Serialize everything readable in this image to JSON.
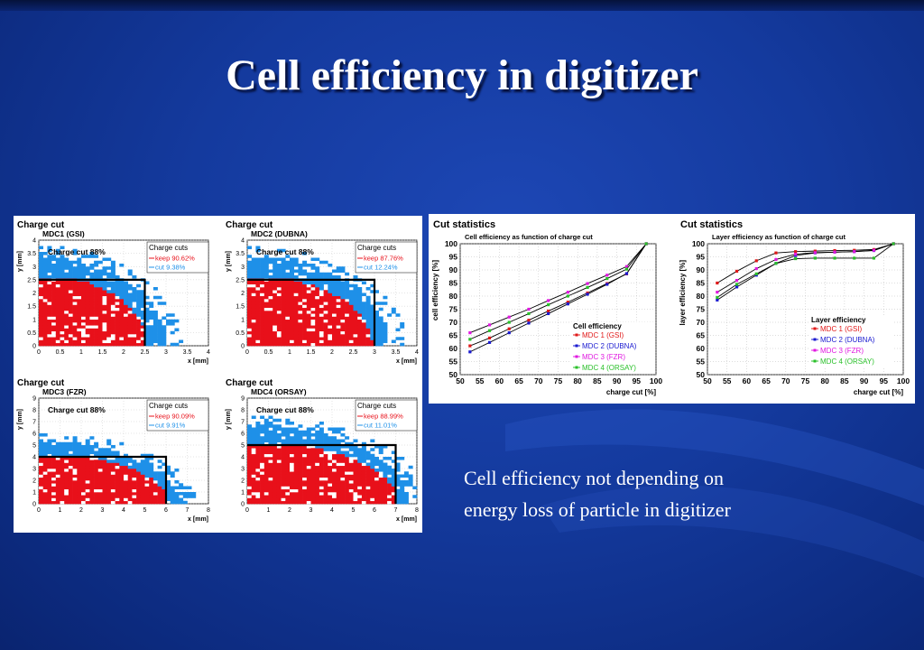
{
  "slide": {
    "title": "Cell efficiency in digitizer",
    "caption_line1": "Cell efficiency not depending on",
    "caption_line2": "energy loss of particle in digitizer"
  },
  "colors": {
    "keep": "#e8101a",
    "cut": "#1e90e8",
    "mdc1": "#e01818",
    "mdc2": "#1a1ad0",
    "mdc3": "#e018e0",
    "mdc4": "#2ac02a"
  },
  "chart_data": [
    {
      "type": "heatmap",
      "panel_title": "Charge cut",
      "title": "MDC1 (GSI)",
      "annotation": "Charge cut 88%",
      "xlabel": "x [mm]",
      "ylabel": "y [mm]",
      "xlim": [
        0,
        4
      ],
      "ylim": [
        0,
        4
      ],
      "xticks": [
        "0",
        "0.5",
        "1",
        "1.5",
        "2",
        "2.5",
        "3",
        "3.5",
        "4"
      ],
      "yticks": [
        "0",
        "0.5",
        "1",
        "1.5",
        "2",
        "2.5",
        "3",
        "3.5",
        "4"
      ],
      "legend_title": "Charge cuts",
      "legend": [
        "keep 90.62%",
        "cut    9.38%"
      ],
      "cut_x": 2.5,
      "cut_y": 2.5,
      "keep_radius": 2.5,
      "cut_extent": 3.0
    },
    {
      "type": "heatmap",
      "panel_title": "Charge cut",
      "title": "MDC2 (DUBNA)",
      "annotation": "Charge cut 88%",
      "xlabel": "x [mm]",
      "ylabel": "y [mm]",
      "xlim": [
        0,
        4
      ],
      "ylim": [
        0,
        4
      ],
      "xticks": [
        "0",
        "0.5",
        "1",
        "1.5",
        "2",
        "2.5",
        "3",
        "3.5",
        "4"
      ],
      "yticks": [
        "0",
        "0.5",
        "1",
        "1.5",
        "2",
        "2.5",
        "3",
        "3.5",
        "4"
      ],
      "legend_title": "Charge cuts",
      "legend": [
        "keep 87.76%",
        "cut   12.24%"
      ],
      "cut_x": 3.0,
      "cut_y": 2.5,
      "keep_radius": 2.9,
      "cut_extent": 3.35
    },
    {
      "type": "heatmap",
      "panel_title": "Charge cut",
      "title": "MDC3 (FZR)",
      "annotation": "Charge cut 88%",
      "xlabel": "x [mm]",
      "ylabel": "y [mm]",
      "xlim": [
        0,
        8
      ],
      "ylim": [
        0,
        9
      ],
      "xticks": [
        "0",
        "1",
        "2",
        "3",
        "4",
        "5",
        "6",
        "7",
        "8"
      ],
      "yticks": [
        "0",
        "1",
        "2",
        "3",
        "4",
        "5",
        "6",
        "7",
        "8",
        "9"
      ],
      "legend_title": "Charge cuts",
      "legend": [
        "keep 90.09%",
        "cut    9.91%"
      ],
      "cut_x": 6.0,
      "cut_y": 4.0,
      "keep_radius": 6.0,
      "cut_extent": 6.6
    },
    {
      "type": "heatmap",
      "panel_title": "Charge cut",
      "title": "MDC4 (ORSAY)",
      "annotation": "Charge cut 88%",
      "xlabel": "x [mm]",
      "ylabel": "y [mm]",
      "xlim": [
        0,
        8
      ],
      "ylim": [
        0,
        9
      ],
      "xticks": [
        "0",
        "1",
        "2",
        "3",
        "4",
        "5",
        "6",
        "7",
        "8"
      ],
      "yticks": [
        "0",
        "1",
        "2",
        "3",
        "4",
        "5",
        "6",
        "7",
        "8",
        "9"
      ],
      "legend_title": "Charge cuts",
      "legend": [
        "keep 88.99%",
        "cut   11.01%"
      ],
      "cut_x": 7.0,
      "cut_y": 5.0,
      "keep_radius": 7.0,
      "cut_extent": 7.6
    },
    {
      "type": "line",
      "panel_title": "Cut statistics",
      "title": "Cell efficiency as function of charge cut",
      "xlabel": "charge cut [%]",
      "ylabel": "cell efficiency [%]",
      "xlim": [
        50,
        100
      ],
      "ylim": [
        50,
        100
      ],
      "xticks": [
        "50",
        "55",
        "60",
        "65",
        "70",
        "75",
        "80",
        "85",
        "90",
        "95",
        "100"
      ],
      "yticks": [
        "50",
        "55",
        "60",
        "65",
        "70",
        "75",
        "80",
        "85",
        "90",
        "95",
        "100"
      ],
      "legend_title": "Cell efficiency",
      "legend_position": "bottom-right",
      "x": [
        52.5,
        57.5,
        62.5,
        67.5,
        72.5,
        77.5,
        82.5,
        87.5,
        92.5,
        97.5
      ],
      "series": [
        {
          "name": "MDC 1 (GSI)",
          "color": "#e01818",
          "values": [
            61,
            64,
            67.5,
            70.8,
            74.3,
            77.7,
            81.2,
            84.8,
            88.5,
            100
          ]
        },
        {
          "name": "MDC 2 (DUBNA)",
          "color": "#1a1ad0",
          "values": [
            58.7,
            62.3,
            66,
            69.7,
            73.3,
            77,
            80.7,
            84.5,
            88.6,
            100
          ]
        },
        {
          "name": "MDC 3 (FZR)",
          "color": "#e018e0",
          "values": [
            66,
            69,
            72,
            75,
            78.3,
            81.5,
            84.8,
            88,
            91.3,
            100
          ]
        },
        {
          "name": "MDC 4 (ORSAY)",
          "color": "#2ac02a",
          "values": [
            63.5,
            66.8,
            70,
            73.3,
            76.7,
            80,
            83.3,
            86.7,
            90.3,
            100
          ]
        }
      ]
    },
    {
      "type": "line",
      "panel_title": "Cut statistics",
      "title": "Layer efficiency as function of charge cut",
      "xlabel": "charge cut [%]",
      "ylabel": "layer efficiency [%]",
      "xlim": [
        50,
        100
      ],
      "ylim": [
        50,
        100
      ],
      "xticks": [
        "50",
        "55",
        "60",
        "65",
        "70",
        "75",
        "80",
        "85",
        "90",
        "95",
        "100"
      ],
      "yticks": [
        "50",
        "55",
        "60",
        "65",
        "70",
        "75",
        "80",
        "85",
        "90",
        "95",
        "100"
      ],
      "legend_title": "Layer efficiency",
      "legend_position": "bottom-right",
      "x": [
        52.5,
        57.5,
        62.5,
        67.5,
        72.5,
        77.5,
        82.5,
        87.5,
        92.5,
        97.5
      ],
      "series": [
        {
          "name": "MDC 1 (GSI)",
          "color": "#e01818",
          "values": [
            85,
            89.5,
            93.5,
            96.5,
            97,
            97.2,
            97.4,
            97.5,
            97.8,
            100
          ]
        },
        {
          "name": "MDC 2 (DUBNA)",
          "color": "#1a1ad0",
          "values": [
            78.5,
            83.5,
            88,
            92.5,
            95.5,
            96.5,
            96.8,
            97,
            97.4,
            100
          ]
        },
        {
          "name": "MDC 3 (FZR)",
          "color": "#e018e0",
          "values": [
            81.5,
            86,
            90.5,
            94,
            96,
            96.6,
            96.8,
            97,
            97.5,
            100
          ]
        },
        {
          "name": "MDC 4 (ORSAY)",
          "color": "#2ac02a",
          "values": [
            79.5,
            84.5,
            88.5,
            92.5,
            94.3,
            94.5,
            94.5,
            94.5,
            94.5,
            100
          ]
        }
      ]
    }
  ]
}
